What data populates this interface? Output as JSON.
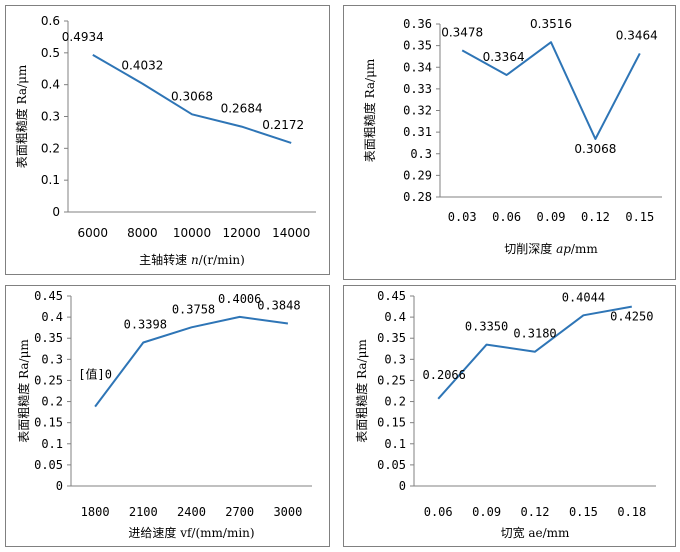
{
  "colors": {
    "line": "#2e75b6",
    "axis": "#808080",
    "border": "#808080",
    "text": "#000000"
  },
  "chart_data": [
    {
      "type": "line",
      "categories": [
        "6000",
        "8000",
        "10000",
        "12000",
        "14000"
      ],
      "values": [
        0.4934,
        0.4032,
        0.3068,
        0.2684,
        0.2172
      ],
      "data_labels": [
        "0.4934",
        "0.4032",
        "0.3068",
        "0.2684",
        "0.2172"
      ],
      "y_ticks": [
        "0",
        "0.1",
        "0.2",
        "0.3",
        "0.4",
        "0.5",
        "0.6"
      ],
      "ylim": [
        0,
        0.6
      ],
      "xlabel": {
        "prefix": "主轴转速 ",
        "var": "n",
        "suffix": "/(r/min)"
      },
      "ylabel": "表面粗糙度 Ra/μm",
      "grid": false
    },
    {
      "type": "line",
      "categories": [
        "0.03",
        "0.06",
        "0.09",
        "0.12",
        "0.15"
      ],
      "values": [
        0.3478,
        0.3364,
        0.3516,
        0.3068,
        0.3464
      ],
      "data_labels": [
        "0.3478",
        "0.3364",
        "0.3516",
        "0.3068",
        "0.3464"
      ],
      "y_ticks": [
        "0.28",
        "0.29",
        "0.3",
        "0.31",
        "0.32",
        "0.33",
        "0.34",
        "0.35",
        "0.36"
      ],
      "ylim": [
        0.28,
        0.36
      ],
      "xlabel": {
        "prefix": "切削深度 ",
        "var": "ap",
        "suffix": "/mm"
      },
      "ylabel": "表面粗糙度  Ra/μm",
      "grid": false
    },
    {
      "type": "line",
      "categories": [
        "1800",
        "2100",
        "2400",
        "2700",
        "3000"
      ],
      "values": [
        0.188,
        0.3398,
        0.3758,
        0.4006,
        0.3848
      ],
      "data_labels": [
        "[值]0",
        "0.3398",
        "0.3758",
        "0.4006",
        "0.3848"
      ],
      "y_ticks": [
        "0",
        "0.05",
        "0.1",
        "0.15",
        "0.2",
        "0.25",
        "0.3",
        "0.35",
        "0.4",
        "0.45"
      ],
      "ylim": [
        0,
        0.45
      ],
      "xlabel": {
        "prefix": "进给速度 vf/(mm/min)",
        "var": "",
        "suffix": ""
      },
      "ylabel": "表面粗糙度 Ra/μm",
      "grid": false
    },
    {
      "type": "line",
      "categories": [
        "0.06",
        "0.09",
        "0.12",
        "0.15",
        "0.18"
      ],
      "values": [
        0.2066,
        0.335,
        0.318,
        0.4044,
        0.425
      ],
      "data_labels": [
        "0.2066",
        "0.3350",
        "0.3180",
        "0.4044",
        "0.4250"
      ],
      "y_ticks": [
        "0",
        "0.05",
        "0.1",
        "0.15",
        "0.2",
        "0.25",
        "0.3",
        "0.35",
        "0.4",
        "0.45"
      ],
      "ylim": [
        0,
        0.45
      ],
      "xlabel": {
        "prefix": "切宽 ae/mm",
        "var": "",
        "suffix": ""
      },
      "ylabel": "表面粗糙度 Ra/μm",
      "grid": false
    }
  ]
}
